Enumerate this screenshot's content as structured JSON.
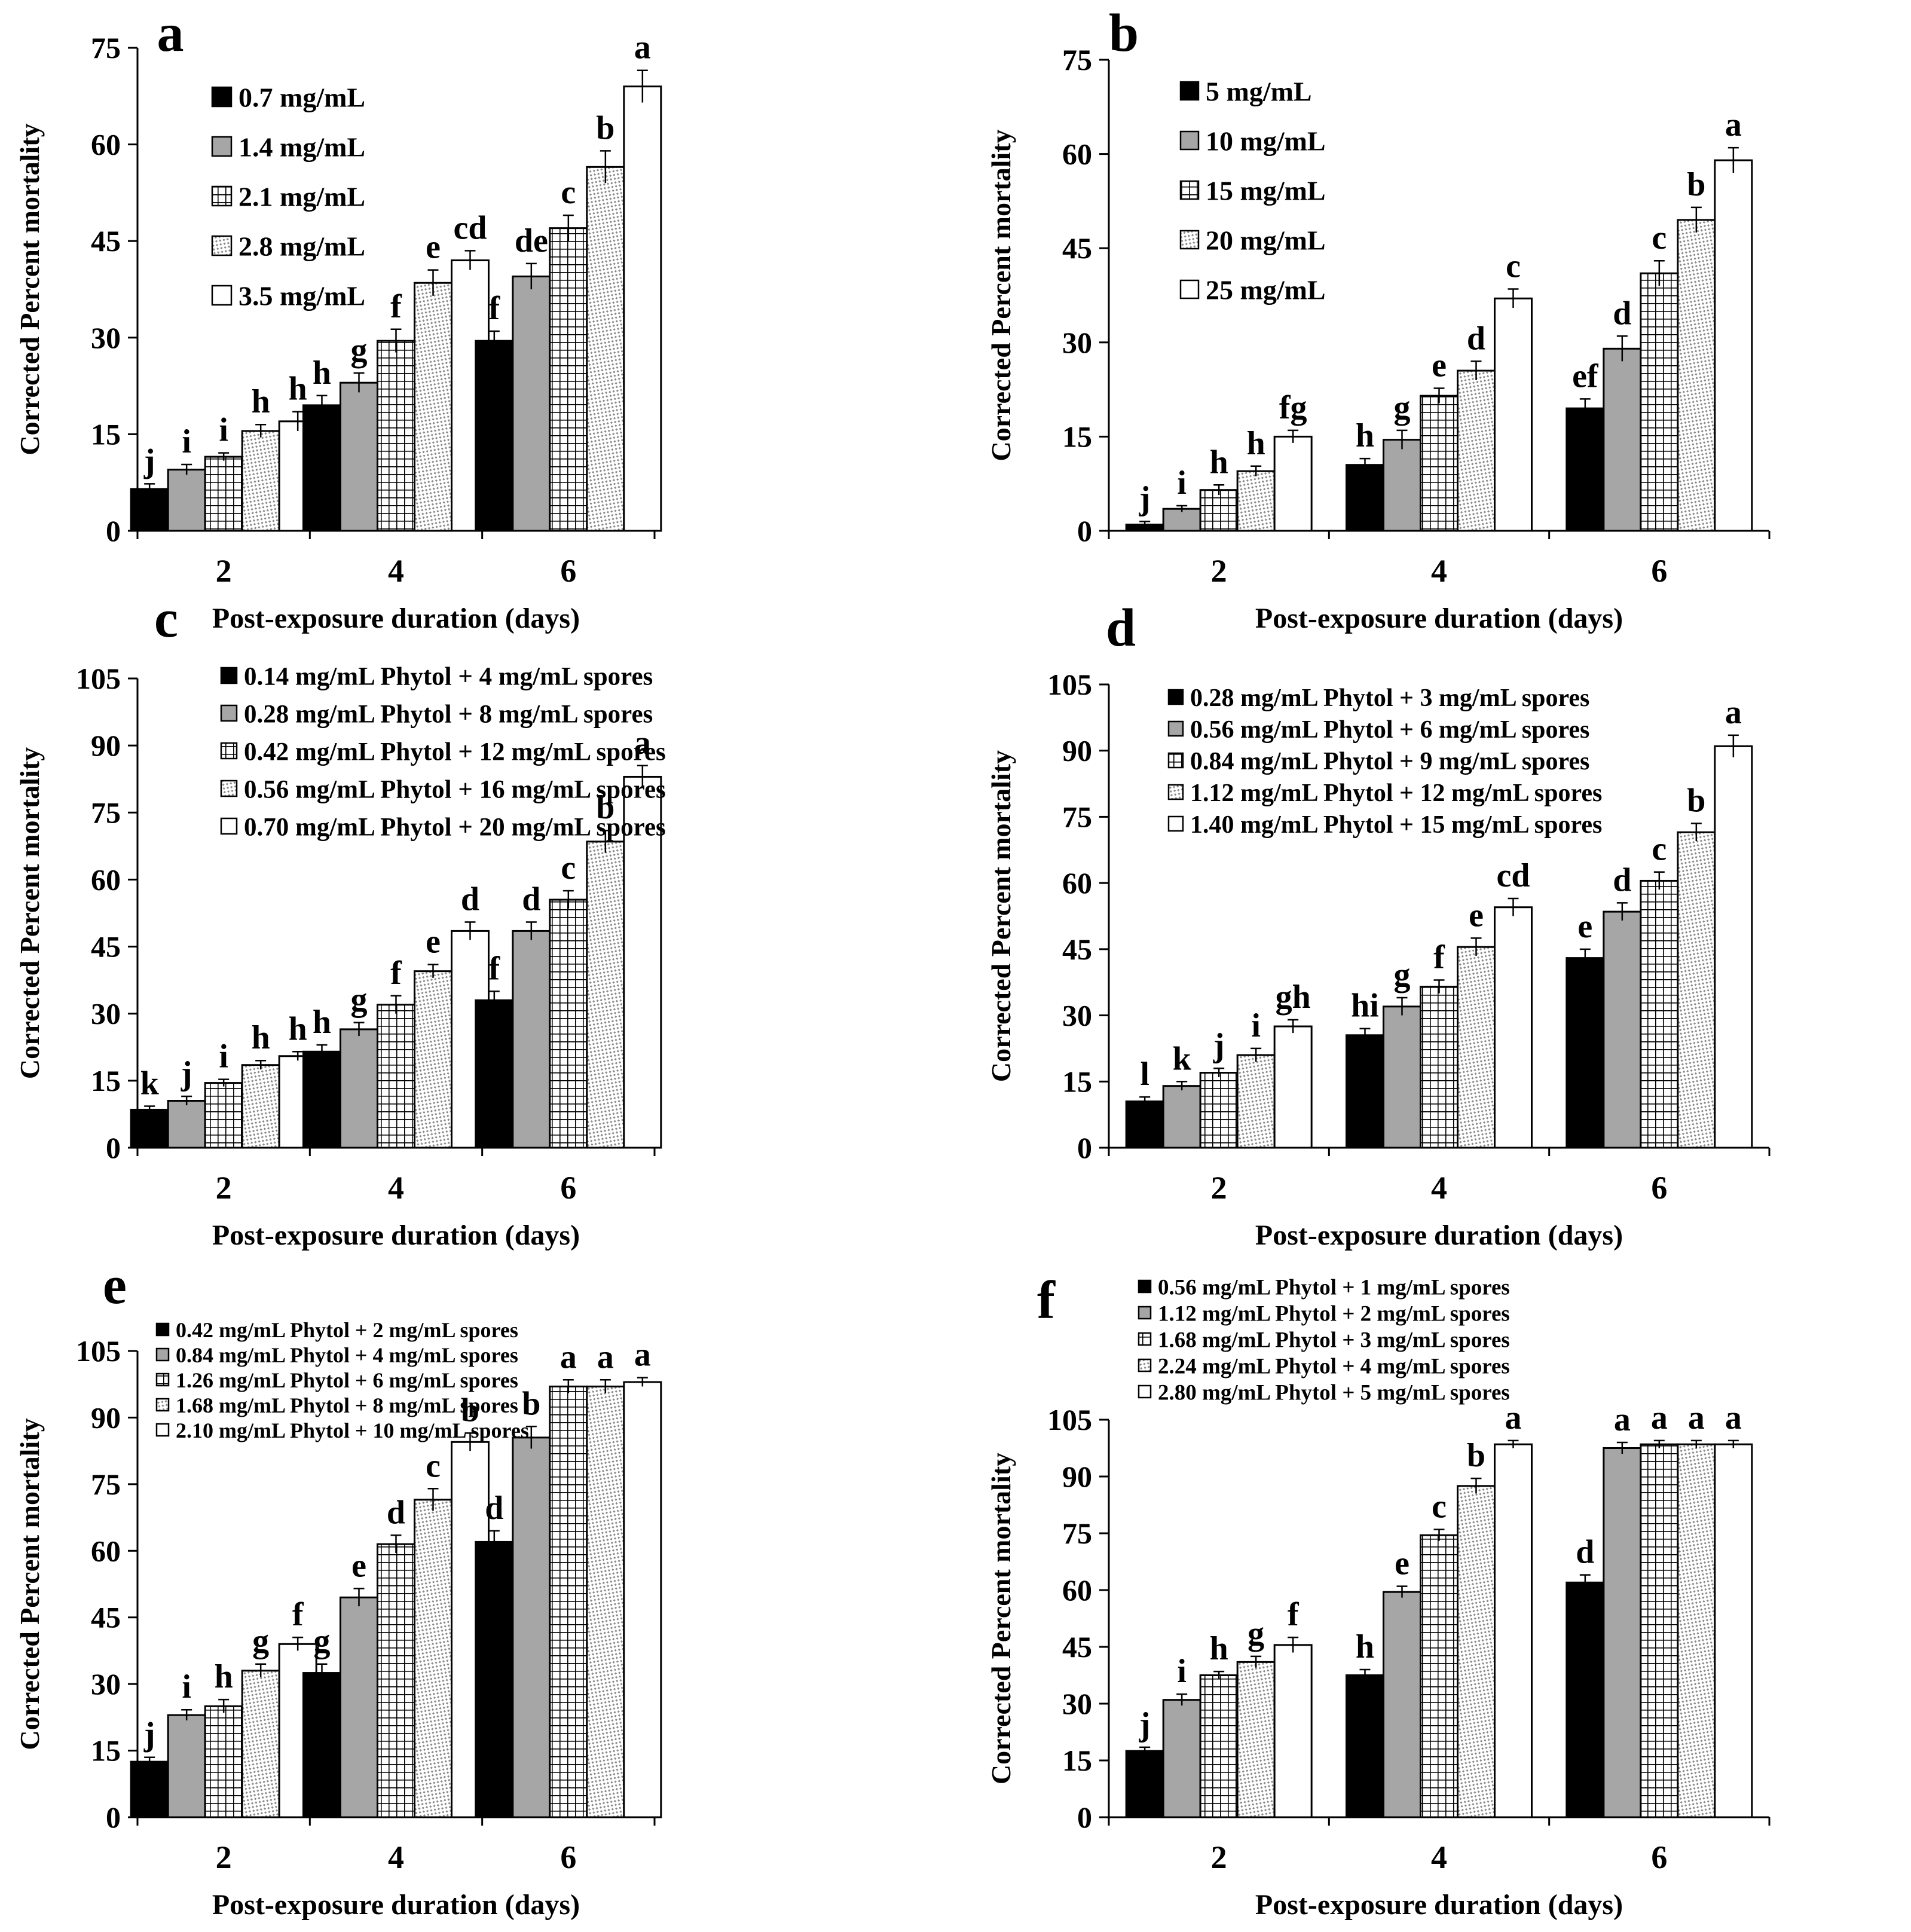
{
  "figure": {
    "x_label": "Post-exposure duration (days)",
    "y_label": "Corrected Percent mortality",
    "categories": [
      "2",
      "4",
      "6"
    ]
  },
  "chart_data": [
    {
      "type": "bar",
      "panel": "a",
      "title": "a",
      "xlabel": "Post-exposure duration (days)",
      "ylabel": "Corrected Percent mortality",
      "categories": [
        "2",
        "4",
        "6"
      ],
      "ylim": [
        0,
        75
      ],
      "yticks": [
        0,
        15,
        30,
        45,
        60,
        75
      ],
      "legend_position": "top-left",
      "series": [
        {
          "name": "0.7 mg/mL",
          "values": [
            6.5,
            19.5,
            29.5
          ],
          "errors": [
            0.8,
            1.5,
            1.5
          ],
          "letters": [
            "j",
            "h",
            "f"
          ]
        },
        {
          "name": "1.4 mg/mL",
          "values": [
            9.5,
            23,
            39.5
          ],
          "errors": [
            0.8,
            1.5,
            2
          ],
          "letters": [
            "i",
            "g",
            "de"
          ]
        },
        {
          "name": "2.1 mg/mL",
          "values": [
            11.5,
            29.5,
            47
          ],
          "errors": [
            0.6,
            1.8,
            2
          ],
          "letters": [
            "i",
            "f",
            "c"
          ]
        },
        {
          "name": "2.8 mg/mL",
          "values": [
            15.5,
            38.5,
            56.5
          ],
          "errors": [
            1,
            2,
            2.5
          ],
          "letters": [
            "h",
            "e",
            "b"
          ]
        },
        {
          "name": "3.5 mg/mL",
          "values": [
            17,
            42,
            69
          ],
          "errors": [
            1.5,
            1.5,
            2.5
          ],
          "letters": [
            "h",
            "cd",
            "a"
          ]
        }
      ]
    },
    {
      "type": "bar",
      "panel": "b",
      "title": "b",
      "xlabel": "Post-exposure duration (days)",
      "ylabel": "Corrected Percent mortality",
      "categories": [
        "2",
        "4",
        "6"
      ],
      "ylim": [
        0,
        75
      ],
      "yticks": [
        0,
        15,
        30,
        45,
        60,
        75
      ],
      "legend_position": "top-left",
      "series": [
        {
          "name": "5 mg/mL",
          "values": [
            1,
            10.5,
            19.5
          ],
          "errors": [
            0.5,
            1,
            1.5
          ],
          "letters": [
            "j",
            "h",
            "ef"
          ]
        },
        {
          "name": "10 mg/mL",
          "values": [
            3.5,
            14.5,
            29
          ],
          "errors": [
            0.5,
            1.5,
            2
          ],
          "letters": [
            "i",
            "g",
            "d"
          ]
        },
        {
          "name": "15 mg/mL",
          "values": [
            6.5,
            21.5,
            41
          ],
          "errors": [
            0.8,
            1.2,
            2
          ],
          "letters": [
            "h",
            "e",
            "c"
          ]
        },
        {
          "name": "20 mg/mL",
          "values": [
            9.5,
            25.5,
            49.5
          ],
          "errors": [
            0.8,
            1.5,
            2
          ],
          "letters": [
            "h",
            "d",
            "b"
          ]
        },
        {
          "name": "25 mg/mL",
          "values": [
            15,
            37,
            59
          ],
          "errors": [
            1,
            1.5,
            2
          ],
          "letters": [
            "fg",
            "c",
            "a"
          ]
        }
      ]
    },
    {
      "type": "bar",
      "panel": "c",
      "title": "c",
      "xlabel": "Post-exposure duration (days)",
      "ylabel": "Corrected Percent mortality",
      "categories": [
        "2",
        "4",
        "6"
      ],
      "ylim": [
        0,
        105
      ],
      "yticks": [
        0,
        15,
        30,
        45,
        60,
        75,
        90,
        105
      ],
      "legend_position": "top",
      "series": [
        {
          "name": "0.14 mg/mL Phytol + 4 mg/mL spores",
          "values": [
            8.5,
            21.5,
            33
          ],
          "errors": [
            0.8,
            1.5,
            2
          ],
          "letters": [
            "k",
            "h",
            "f"
          ]
        },
        {
          "name": "0.28 mg/mL Phytol + 8 mg/mL spores",
          "values": [
            10.5,
            26.5,
            48.5
          ],
          "errors": [
            1,
            1.5,
            2
          ],
          "letters": [
            "j",
            "g",
            "d"
          ]
        },
        {
          "name": "0.42 mg/mL Phytol + 12 mg/mL spores",
          "values": [
            14.5,
            32,
            55.5
          ],
          "errors": [
            0.8,
            2,
            2
          ],
          "letters": [
            "i",
            "f",
            "c"
          ]
        },
        {
          "name": "0.56 mg/mL Phytol + 16 mg/mL spores",
          "values": [
            18.5,
            39.5,
            68.5
          ],
          "errors": [
            1,
            1.5,
            2.5
          ],
          "letters": [
            "h",
            "e",
            "b"
          ]
        },
        {
          "name": "0.70 mg/mL Phytol + 20 mg/mL spores",
          "values": [
            20.5,
            48.5,
            83
          ],
          "errors": [
            1,
            2,
            2.5
          ],
          "letters": [
            "h",
            "d",
            "a"
          ]
        }
      ]
    },
    {
      "type": "bar",
      "panel": "d",
      "title": "d",
      "xlabel": "Post-exposure duration (days)",
      "ylabel": "Corrected Percent mortality",
      "categories": [
        "2",
        "4",
        "6"
      ],
      "ylim": [
        0,
        105
      ],
      "yticks": [
        0,
        15,
        30,
        45,
        60,
        75,
        90,
        105
      ],
      "legend_position": "top",
      "series": [
        {
          "name": "0.28 mg/mL Phytol + 3 mg/mL spores",
          "values": [
            10.5,
            25.5,
            43
          ],
          "errors": [
            1,
            1.5,
            2
          ],
          "letters": [
            "l",
            "hi",
            "e"
          ]
        },
        {
          "name": "0.56 mg/mL Phytol + 6 mg/mL spores",
          "values": [
            14,
            32,
            53.5
          ],
          "errors": [
            1,
            2,
            2
          ],
          "letters": [
            "k",
            "g",
            "d"
          ]
        },
        {
          "name": "0.84 mg/mL Phytol + 9 mg/mL spores",
          "values": [
            17,
            36.5,
            60.5
          ],
          "errors": [
            1,
            1.5,
            2
          ],
          "letters": [
            "j",
            "f",
            "c"
          ]
        },
        {
          "name": "1.12 mg/mL Phytol + 12 mg/mL spores",
          "values": [
            21,
            45.5,
            71.5
          ],
          "errors": [
            1.5,
            2,
            2
          ],
          "letters": [
            "i",
            "e",
            "b"
          ]
        },
        {
          "name": "1.40 mg/mL Phytol + 15 mg/mL spores",
          "values": [
            27.5,
            54.5,
            91
          ],
          "errors": [
            1.5,
            2,
            2.5
          ],
          "letters": [
            "gh",
            "cd",
            "a"
          ]
        }
      ]
    },
    {
      "type": "bar",
      "panel": "e",
      "title": "e",
      "xlabel": "Post-exposure duration (days)",
      "ylabel": "Corrected Percent mortality",
      "categories": [
        "2",
        "4",
        "6"
      ],
      "ylim": [
        0,
        105
      ],
      "yticks": [
        0,
        15,
        30,
        45,
        60,
        75,
        90,
        105
      ],
      "legend_position": "top",
      "series": [
        {
          "name": "0.42 mg/mL Phytol + 2 mg/mL spores",
          "values": [
            12.5,
            32.5,
            62
          ],
          "errors": [
            1,
            2,
            2.5
          ],
          "letters": [
            "j",
            "g",
            "d"
          ]
        },
        {
          "name": "0.84 mg/mL Phytol + 4 mg/mL spores",
          "values": [
            23,
            49.5,
            85.5
          ],
          "errors": [
            1.2,
            2,
            2.5
          ],
          "letters": [
            "i",
            "e",
            "b"
          ]
        },
        {
          "name": "1.26 mg/mL Phytol + 6 mg/mL spores",
          "values": [
            25,
            61.5,
            97
          ],
          "errors": [
            1.5,
            2,
            1.5
          ],
          "letters": [
            "h",
            "d",
            "a"
          ]
        },
        {
          "name": "1.68 mg/mL Phytol + 8 mg/mL spores",
          "values": [
            33,
            71.5,
            97
          ],
          "errors": [
            1.5,
            2.5,
            1.5
          ],
          "letters": [
            "g",
            "c",
            "a"
          ]
        },
        {
          "name": "2.10 mg/mL Phytol + 10 mg/mL spores",
          "values": [
            39,
            84.5,
            98
          ],
          "errors": [
            1.5,
            2,
            1
          ],
          "letters": [
            "f",
            "b",
            "a"
          ]
        }
      ]
    },
    {
      "type": "bar",
      "panel": "f",
      "title": "f",
      "xlabel": "Post-exposure duration (days)",
      "ylabel": "Corrected Percent mortality",
      "categories": [
        "2",
        "4",
        "6"
      ],
      "ylim": [
        0,
        105
      ],
      "yticks": [
        0,
        15,
        30,
        45,
        60,
        75,
        90,
        105
      ],
      "legend_position": "top (above plot)",
      "series": [
        {
          "name": "0.56 mg/mL Phytol + 1 mg/mL spores",
          "values": [
            17.5,
            37.5,
            62
          ],
          "errors": [
            1,
            1.5,
            2
          ],
          "letters": [
            "j",
            "h",
            "d"
          ]
        },
        {
          "name": "1.12 mg/mL Phytol + 2 mg/mL spores",
          "values": [
            31,
            59.5,
            97.5
          ],
          "errors": [
            1.5,
            1.5,
            1.5
          ],
          "letters": [
            "i",
            "e",
            "a"
          ]
        },
        {
          "name": "1.68 mg/mL Phytol + 3 mg/mL spores",
          "values": [
            37.5,
            74.5,
            98.5
          ],
          "errors": [
            1,
            1.5,
            1
          ],
          "letters": [
            "h",
            "c",
            "a"
          ]
        },
        {
          "name": "2.24 mg/mL Phytol + 4 mg/mL spores",
          "values": [
            41,
            87.5,
            98.5
          ],
          "errors": [
            1.5,
            2,
            1
          ],
          "letters": [
            "g",
            "b",
            "a"
          ]
        },
        {
          "name": "2.80 mg/mL Phytol + 5 mg/mL spores",
          "values": [
            45.5,
            98.5,
            98.5
          ],
          "errors": [
            2,
            1,
            1
          ],
          "letters": [
            "f",
            "a",
            "a"
          ]
        }
      ]
    }
  ]
}
